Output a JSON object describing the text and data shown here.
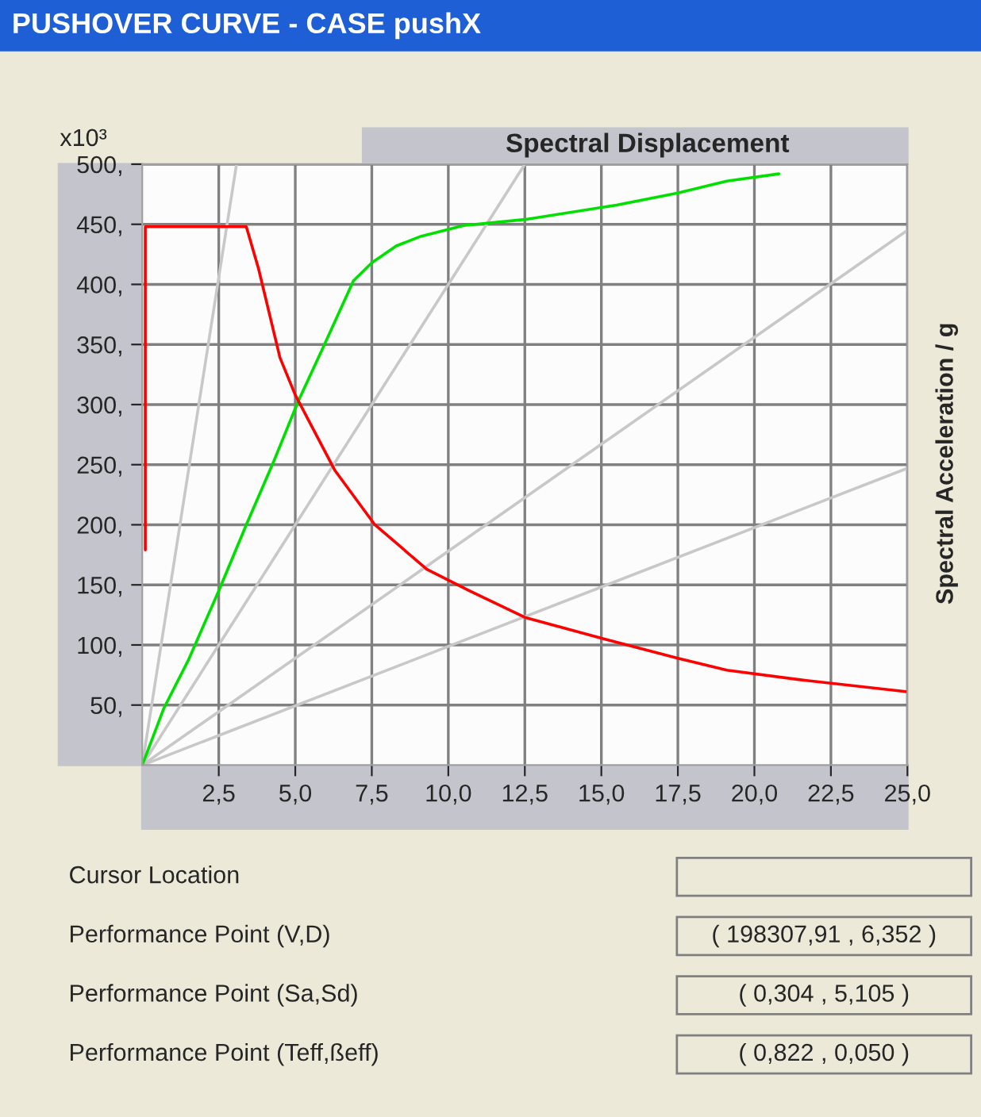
{
  "chart_data": {
    "type": "line",
    "title": "PUSHOVER CURVE - CASE pushX",
    "xlabel": "Spectral Displacement",
    "ylabel": "Spectral Acceleration / g",
    "annotations": [
      "x10³",
      "Cursor Location",
      "Performance Point (V,D)",
      "( 198307,91 , 6,352 )",
      "Performance Point (Sa,Sd)",
      "( 0,304 , 5,105 )",
      "Performance Point (Teff,ßeff)",
      "( 0,822 , 0,050 )"
    ],
    "series": [
      {
        "color": "#c8c8c8",
        "x": [
          0,
          3.08
        ],
        "values": [
          0,
          500
        ]
      },
      {
        "color": "#c8c8c8",
        "x": [
          0,
          12.5
        ],
        "values": [
          0,
          500
        ]
      },
      {
        "color": "#c8c8c8",
        "x": [
          0,
          25
        ],
        "values": [
          0,
          445
        ]
      },
      {
        "color": "#c8c8c8",
        "x": [
          0,
          25
        ],
        "values": [
          0,
          247
        ]
      },
      {
        "color": "#00e000",
        "x": [
          0,
          0.7,
          1.5,
          2.5,
          3.4,
          4.3,
          5.1,
          5.9,
          6.9,
          7.5,
          8.3,
          9.1,
          10.5,
          12.5,
          15.5,
          17.5,
          19.1,
          20.8
        ],
        "values": [
          0,
          47,
          87,
          145,
          200,
          253,
          303,
          347,
          403,
          418,
          432,
          440,
          449,
          454,
          466,
          476,
          486,
          492
        ]
      },
      {
        "color": "#ff0000",
        "x": [
          0.1,
          0.1,
          0.1,
          0.1,
          0.1,
          3.4,
          3.8,
          4.5,
          5.0,
          6.3,
          7.6,
          9.3,
          10.7,
          12.5,
          15.1,
          17.5,
          19.1,
          21.5,
          25.0
        ],
        "values": [
          179,
          245,
          303,
          379,
          448,
          448,
          413,
          339,
          308,
          245,
          200,
          163,
          145,
          123,
          105,
          89,
          79,
          71,
          61
        ]
      }
    ],
    "xlim": [
      0,
      25
    ],
    "ylim": [
      0,
      500
    ],
    "xticks": [
      {
        "value": 2.5,
        "label": "2,5"
      },
      {
        "value": 5,
        "label": "5,0"
      },
      {
        "value": 7.5,
        "label": "7,5"
      },
      {
        "value": 10,
        "label": "10,0"
      },
      {
        "value": 12.5,
        "label": "12,5"
      },
      {
        "value": 15,
        "label": "15,0"
      },
      {
        "value": 17.5,
        "label": "17,5"
      },
      {
        "value": 20,
        "label": "20,0"
      },
      {
        "value": 22.5,
        "label": "22,5"
      },
      {
        "value": 25,
        "label": "25,0"
      }
    ],
    "yticks": [
      {
        "value": 50,
        "label": "50,"
      },
      {
        "value": 100,
        "label": "100,"
      },
      {
        "value": 150,
        "label": "150,"
      },
      {
        "value": 200,
        "label": "200,"
      },
      {
        "value": 250,
        "label": "250,"
      },
      {
        "value": 300,
        "label": "300,"
      },
      {
        "value": 350,
        "label": "350,"
      },
      {
        "value": 400,
        "label": "400,"
      },
      {
        "value": 450,
        "label": "450,"
      },
      {
        "value": 500,
        "label": "500,"
      }
    ],
    "grid": true,
    "line_style": "solid",
    "marker": "none"
  }
}
